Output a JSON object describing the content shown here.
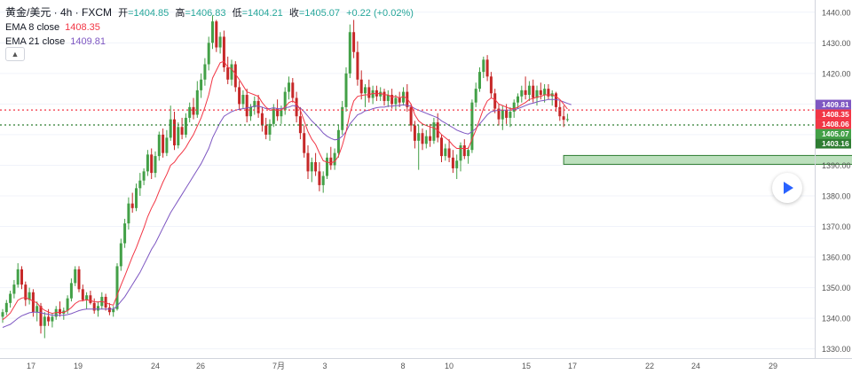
{
  "legend": {
    "symbol": "黄金/美元 · 4h · FXCM",
    "open_label": "开",
    "open": "=1404.85",
    "high_label": "高",
    "high": "=1406.83",
    "low_label": "低",
    "low": "=1404.21",
    "close_label": "收",
    "close": "=1405.07",
    "change": "+0.22 (+0.02%)",
    "ema8_label": "EMA 8 close",
    "ema8_value": "1408.35",
    "ema21_label": "EMA 21 close",
    "ema21_value": "1409.81"
  },
  "colors": {
    "up": "#43a047",
    "down": "#c62828",
    "ema8": "#f23645",
    "ema21": "#7e57c2",
    "zone_fill": "#a5d6a7",
    "zone_stroke": "#2e7d32",
    "red_level": "#f23645",
    "green_level": "#2e7d32"
  },
  "chart_data": {
    "type": "candlestick",
    "y_range": [
      1327,
      1444
    ],
    "y_ticks": [
      "1440.00",
      "1430.00",
      "1420.00",
      "1410.00",
      "1400.00",
      "1390.00",
      "1380.00",
      "1370.00",
      "1360.00",
      "1350.00",
      "1340.00",
      "1330.00"
    ],
    "y_tick_values": [
      1440,
      1430,
      1420,
      1410,
      1400,
      1390,
      1380,
      1370,
      1360,
      1350,
      1340,
      1330
    ],
    "x_labels": [
      "17",
      "19",
      "24",
      "26",
      "7月",
      "3",
      "8",
      "10",
      "15",
      "17",
      "22",
      "24",
      "29"
    ],
    "price_labels": [
      {
        "text": "1409.81",
        "value": 1409.81,
        "color": "#7e57c2"
      },
      {
        "text": "1408.35",
        "value": 1408.35,
        "color": "#f23645"
      },
      {
        "text": "1408.06",
        "value": 1408.06,
        "color": "#f23645"
      },
      {
        "text": "1405.07",
        "value": 1405.07,
        "color": "#43a047"
      },
      {
        "text": "1403.16",
        "value": 1403.16,
        "color": "#2e7d32"
      }
    ],
    "levels": [
      {
        "value": 1408.06,
        "style": "red-dotted"
      },
      {
        "value": 1403.16,
        "style": "green-dotted"
      }
    ],
    "zone": {
      "top": 1393.2,
      "bottom": 1390.3,
      "start_index": 147,
      "end_index": 245
    },
    "ohlc": [
      [
        1340.5,
        1343.0,
        1338.5,
        1342.0
      ],
      [
        1342.0,
        1346.0,
        1341.0,
        1345.0
      ],
      [
        1345.0,
        1349.0,
        1343.5,
        1348.0
      ],
      [
        1348.0,
        1352.5,
        1346.5,
        1351.0
      ],
      [
        1351.0,
        1358.0,
        1350.0,
        1356.0
      ],
      [
        1356.0,
        1357.0,
        1349.5,
        1351.0
      ],
      [
        1351.0,
        1352.0,
        1344.0,
        1346.0
      ],
      [
        1346.0,
        1350.0,
        1344.5,
        1348.5
      ],
      [
        1348.5,
        1349.5,
        1340.5,
        1342.0
      ],
      [
        1342.0,
        1345.5,
        1339.0,
        1344.0
      ],
      [
        1344.0,
        1345.0,
        1335.0,
        1337.5
      ],
      [
        1337.5,
        1342.0,
        1333.5,
        1340.5
      ],
      [
        1340.5,
        1343.0,
        1337.5,
        1339.0
      ],
      [
        1339.0,
        1341.5,
        1337.0,
        1340.5
      ],
      [
        1340.5,
        1344.0,
        1339.5,
        1343.0
      ],
      [
        1343.0,
        1345.5,
        1340.5,
        1341.5
      ],
      [
        1341.5,
        1343.5,
        1339.5,
        1342.5
      ],
      [
        1342.5,
        1347.5,
        1341.5,
        1346.5
      ],
      [
        1346.5,
        1353.0,
        1345.5,
        1351.5
      ],
      [
        1351.5,
        1357.0,
        1350.5,
        1356.0
      ],
      [
        1356.0,
        1357.0,
        1348.5,
        1349.5
      ],
      [
        1349.5,
        1351.0,
        1345.5,
        1346.0
      ],
      [
        1346.0,
        1348.5,
        1343.0,
        1347.5
      ],
      [
        1347.5,
        1349.0,
        1344.5,
        1345.0
      ],
      [
        1345.0,
        1346.5,
        1341.5,
        1342.5
      ],
      [
        1342.5,
        1345.5,
        1340.5,
        1344.0
      ],
      [
        1344.0,
        1348.5,
        1343.0,
        1347.0
      ],
      [
        1347.0,
        1348.0,
        1342.5,
        1343.5
      ],
      [
        1343.5,
        1345.0,
        1341.0,
        1342.0
      ],
      [
        1342.0,
        1344.0,
        1340.5,
        1343.0
      ],
      [
        1343.0,
        1358.0,
        1342.5,
        1357.0
      ],
      [
        1357.0,
        1366.0,
        1355.5,
        1364.5
      ],
      [
        1364.5,
        1372.5,
        1363.0,
        1371.0
      ],
      [
        1371.0,
        1379.5,
        1369.0,
        1377.5
      ],
      [
        1377.5,
        1381.0,
        1374.5,
        1376.0
      ],
      [
        1376.0,
        1384.0,
        1375.0,
        1382.5
      ],
      [
        1382.5,
        1387.5,
        1380.0,
        1385.0
      ],
      [
        1385.0,
        1389.0,
        1383.5,
        1388.0
      ],
      [
        1388.0,
        1395.0,
        1386.5,
        1393.5
      ],
      [
        1393.5,
        1395.5,
        1385.5,
        1387.5
      ],
      [
        1387.5,
        1394.5,
        1386.0,
        1393.0
      ],
      [
        1393.0,
        1401.0,
        1391.5,
        1400.0
      ],
      [
        1400.0,
        1402.0,
        1392.5,
        1394.0
      ],
      [
        1394.0,
        1401.5,
        1393.0,
        1399.0
      ],
      [
        1399.0,
        1409.5,
        1398.0,
        1405.0
      ],
      [
        1405.0,
        1407.5,
        1395.0,
        1396.5
      ],
      [
        1396.5,
        1404.0,
        1395.5,
        1402.5
      ],
      [
        1402.5,
        1405.5,
        1398.5,
        1400.0
      ],
      [
        1400.0,
        1407.0,
        1399.0,
        1405.5
      ],
      [
        1405.5,
        1410.5,
        1404.0,
        1409.0
      ],
      [
        1409.0,
        1412.0,
        1405.0,
        1406.5
      ],
      [
        1406.5,
        1417.5,
        1405.5,
        1414.5
      ],
      [
        1414.5,
        1420.0,
        1412.0,
        1418.0
      ],
      [
        1418.0,
        1425.0,
        1416.0,
        1423.0
      ],
      [
        1423.0,
        1432.0,
        1421.0,
        1430.0
      ],
      [
        1430.0,
        1439.0,
        1428.0,
        1437.0
      ],
      [
        1437.0,
        1437.5,
        1427.0,
        1428.5
      ],
      [
        1428.5,
        1433.5,
        1426.5,
        1432.0
      ],
      [
        1432.0,
        1434.0,
        1420.5,
        1422.0
      ],
      [
        1422.0,
        1425.5,
        1416.5,
        1418.0
      ],
      [
        1418.0,
        1424.5,
        1416.0,
        1423.0
      ],
      [
        1423.0,
        1424.0,
        1414.0,
        1415.5
      ],
      [
        1415.5,
        1417.5,
        1408.0,
        1410.0
      ],
      [
        1410.0,
        1414.5,
        1408.5,
        1413.0
      ],
      [
        1413.0,
        1415.0,
        1404.0,
        1406.0
      ],
      [
        1406.0,
        1410.0,
        1404.5,
        1409.0
      ],
      [
        1409.0,
        1412.5,
        1406.5,
        1411.0
      ],
      [
        1411.0,
        1413.0,
        1405.5,
        1407.0
      ],
      [
        1407.0,
        1409.0,
        1401.0,
        1403.0
      ],
      [
        1403.0,
        1405.5,
        1398.5,
        1400.0
      ],
      [
        1400.0,
        1405.0,
        1398.0,
        1403.5
      ],
      [
        1403.5,
        1410.0,
        1402.5,
        1408.5
      ],
      [
        1408.5,
        1411.5,
        1404.5,
        1406.0
      ],
      [
        1406.0,
        1409.5,
        1403.5,
        1408.0
      ],
      [
        1408.0,
        1415.5,
        1406.5,
        1414.0
      ],
      [
        1414.0,
        1419.0,
        1411.5,
        1417.0
      ],
      [
        1417.0,
        1418.5,
        1410.5,
        1412.0
      ],
      [
        1412.0,
        1414.0,
        1404.0,
        1406.0
      ],
      [
        1406.0,
        1409.0,
        1398.5,
        1400.5
      ],
      [
        1400.5,
        1403.0,
        1392.5,
        1394.0
      ],
      [
        1394.0,
        1396.5,
        1385.5,
        1388.0
      ],
      [
        1388.0,
        1392.5,
        1384.5,
        1391.0
      ],
      [
        1391.0,
        1394.0,
        1386.5,
        1388.0
      ],
      [
        1388.0,
        1391.0,
        1381.5,
        1383.5
      ],
      [
        1383.5,
        1388.0,
        1381.0,
        1386.5
      ],
      [
        1386.5,
        1394.0,
        1385.5,
        1392.5
      ],
      [
        1392.5,
        1396.0,
        1388.5,
        1390.0
      ],
      [
        1390.0,
        1395.5,
        1388.5,
        1394.0
      ],
      [
        1394.0,
        1403.0,
        1392.5,
        1401.5
      ],
      [
        1401.5,
        1411.0,
        1400.0,
        1409.0
      ],
      [
        1409.0,
        1422.0,
        1407.5,
        1420.0
      ],
      [
        1420.0,
        1436.0,
        1418.5,
        1433.5
      ],
      [
        1433.5,
        1437.5,
        1425.0,
        1427.0
      ],
      [
        1427.0,
        1430.5,
        1416.0,
        1418.0
      ],
      [
        1418.0,
        1421.0,
        1411.5,
        1413.5
      ],
      [
        1413.5,
        1416.5,
        1409.0,
        1415.5
      ],
      [
        1415.5,
        1418.0,
        1410.5,
        1412.0
      ],
      [
        1412.0,
        1416.0,
        1410.0,
        1414.5
      ],
      [
        1414.5,
        1416.0,
        1411.0,
        1412.5
      ],
      [
        1412.5,
        1415.5,
        1411.0,
        1414.0
      ],
      [
        1414.0,
        1415.0,
        1409.5,
        1411.0
      ],
      [
        1411.0,
        1414.5,
        1409.0,
        1413.0
      ],
      [
        1413.0,
        1415.0,
        1408.5,
        1410.0
      ],
      [
        1410.0,
        1413.0,
        1408.0,
        1412.0
      ],
      [
        1412.0,
        1414.0,
        1409.0,
        1410.5
      ],
      [
        1410.5,
        1415.5,
        1409.5,
        1414.0
      ],
      [
        1414.0,
        1416.5,
        1407.5,
        1409.0
      ],
      [
        1409.0,
        1410.0,
        1401.0,
        1403.0
      ],
      [
        1403.0,
        1404.5,
        1395.5,
        1398.0
      ],
      [
        1398.0,
        1403.0,
        1388.5,
        1400.5
      ],
      [
        1400.5,
        1402.0,
        1395.0,
        1397.0
      ],
      [
        1397.0,
        1401.5,
        1395.5,
        1399.5
      ],
      [
        1399.5,
        1403.5,
        1396.0,
        1398.0
      ],
      [
        1398.0,
        1405.5,
        1397.0,
        1404.0
      ],
      [
        1404.0,
        1407.0,
        1397.5,
        1399.0
      ],
      [
        1399.0,
        1400.0,
        1391.0,
        1393.0
      ],
      [
        1393.0,
        1397.0,
        1391.5,
        1395.5
      ],
      [
        1395.5,
        1398.5,
        1391.0,
        1392.5
      ],
      [
        1392.5,
        1395.0,
        1387.5,
        1389.0
      ],
      [
        1389.0,
        1393.5,
        1385.5,
        1391.5
      ],
      [
        1391.5,
        1397.5,
        1388.0,
        1396.5
      ],
      [
        1396.5,
        1398.5,
        1392.0,
        1393.0
      ],
      [
        1393.0,
        1396.0,
        1390.5,
        1395.0
      ],
      [
        1395.0,
        1411.5,
        1394.0,
        1410.5
      ],
      [
        1410.5,
        1417.0,
        1409.0,
        1415.0
      ],
      [
        1415.0,
        1422.0,
        1414.0,
        1420.5
      ],
      [
        1420.5,
        1425.5,
        1418.5,
        1424.5
      ],
      [
        1424.5,
        1426.0,
        1417.5,
        1419.0
      ],
      [
        1419.0,
        1420.5,
        1412.0,
        1413.5
      ],
      [
        1413.5,
        1415.0,
        1407.0,
        1408.5
      ],
      [
        1408.5,
        1410.0,
        1403.0,
        1405.0
      ],
      [
        1405.0,
        1409.5,
        1401.5,
        1408.0
      ],
      [
        1408.0,
        1410.0,
        1403.5,
        1405.5
      ],
      [
        1405.5,
        1409.0,
        1402.5,
        1407.5
      ],
      [
        1407.5,
        1411.5,
        1405.5,
        1410.5
      ],
      [
        1410.5,
        1413.5,
        1408.5,
        1412.5
      ],
      [
        1412.5,
        1416.0,
        1410.5,
        1414.5
      ],
      [
        1414.5,
        1419.0,
        1411.5,
        1413.0
      ],
      [
        1413.0,
        1417.5,
        1411.0,
        1416.0
      ],
      [
        1416.0,
        1418.0,
        1410.5,
        1412.0
      ],
      [
        1412.0,
        1416.0,
        1409.5,
        1414.5
      ],
      [
        1414.5,
        1417.0,
        1411.5,
        1413.0
      ],
      [
        1413.0,
        1416.5,
        1410.5,
        1415.0
      ],
      [
        1415.0,
        1416.5,
        1411.5,
        1412.5
      ],
      [
        1412.5,
        1414.5,
        1409.5,
        1413.5
      ],
      [
        1413.5,
        1414.0,
        1407.5,
        1409.0
      ],
      [
        1409.0,
        1411.0,
        1404.5,
        1406.0
      ],
      [
        1406.0,
        1409.5,
        1402.5,
        1404.85
      ],
      [
        1404.85,
        1406.83,
        1404.21,
        1405.07
      ]
    ],
    "ema8": [
      1339.5,
      1340.5,
      1341.7,
      1343.8,
      1345.9,
      1346.6,
      1346.8,
      1346.2,
      1345.6,
      1345.0,
      1343.5,
      1342.6,
      1342.0,
      1341.6,
      1341.9,
      1342.0,
      1341.9,
      1342.5,
      1343.5,
      1344.8,
      1345.6,
      1345.8,
      1346.0,
      1345.8,
      1345.4,
      1345.3,
      1345.5,
      1345.1,
      1344.6,
      1344.3,
      1347.5,
      1350.8,
      1353.8,
      1357.0,
      1360.2,
      1363.0,
      1366.3,
      1369.5,
      1373.2,
      1376.0,
      1378.4,
      1381.5,
      1384.5,
      1387.0,
      1390.0,
      1391.0,
      1392.8,
      1394.2,
      1395.8,
      1398.0,
      1400.0,
      1402.8,
      1405.5,
      1409.0,
      1413.0,
      1418.5,
      1421.0,
      1423.5,
      1424.0,
      1422.0,
      1421.5,
      1419.8,
      1418.0,
      1416.0,
      1414.0,
      1413.5,
      1413.0,
      1412.5,
      1410.5,
      1409.0,
      1408.0,
      1408.2,
      1408.0,
      1408.0,
      1409.0,
      1410.5,
      1411.0,
      1410.2,
      1408.0,
      1404.5,
      1401.0,
      1398.5,
      1396.8,
      1394.0,
      1391.5,
      1391.0,
      1390.8,
      1391.2,
      1393.0,
      1396.5,
      1401.0,
      1407.0,
      1411.0,
      1412.5,
      1412.8,
      1413.0,
      1413.0,
      1413.5,
      1413.3,
      1413.5,
      1413.0,
      1413.0,
      1412.3,
      1412.5,
      1412.0,
      1412.5,
      1411.8,
      1410.0,
      1406.5,
      1404.5,
      1403.5,
      1403.0,
      1402.5,
      1402.2,
      1401.5,
      1400.0,
      1399.0,
      1398.0,
      1396.5,
      1395.5,
      1395.5,
      1395.5,
      1395.5,
      1398.5,
      1401.5,
      1405.0,
      1408.5,
      1411.0,
      1412.0,
      1411.5,
      1410.0,
      1409.5,
      1409.0,
      1408.5,
      1408.5,
      1409.0,
      1409.8,
      1410.5,
      1411.5,
      1411.8,
      1412.3,
      1412.5,
      1413.0,
      1413.0,
      1413.0,
      1412.5,
      1411.5,
      1410.0,
      1408.35
    ],
    "ema21": [
      1337.0,
      1337.5,
      1338.0,
      1339.0,
      1340.0,
      1340.8,
      1341.3,
      1341.8,
      1342.0,
      1342.0,
      1341.8,
      1341.5,
      1341.3,
      1341.0,
      1341.0,
      1341.0,
      1341.0,
      1341.2,
      1341.5,
      1342.0,
      1342.5,
      1342.8,
      1343.0,
      1343.0,
      1343.0,
      1343.0,
      1343.0,
      1343.0,
      1343.0,
      1343.0,
      1344.0,
      1345.5,
      1347.0,
      1349.0,
      1351.0,
      1353.0,
      1355.0,
      1357.5,
      1360.0,
      1362.5,
      1364.5,
      1367.0,
      1369.5,
      1372.0,
      1374.5,
      1376.5,
      1378.5,
      1380.5,
      1382.5,
      1384.5,
      1386.5,
      1388.5,
      1390.5,
      1393.0,
      1395.5,
      1399.0,
      1401.5,
      1404.0,
      1406.0,
      1406.8,
      1407.5,
      1408.0,
      1408.3,
      1408.5,
      1408.7,
      1409.0,
      1409.3,
      1409.3,
      1409.0,
      1408.5,
      1408.5,
      1408.8,
      1408.5,
      1408.5,
      1408.8,
      1409.0,
      1409.5,
      1409.3,
      1408.7,
      1407.5,
      1406.0,
      1404.5,
      1403.3,
      1402.0,
      1400.5,
      1399.5,
      1398.8,
      1398.3,
      1398.5,
      1399.5,
      1401.0,
      1403.5,
      1405.0,
      1406.5,
      1407.0,
      1407.8,
      1408.0,
      1408.5,
      1408.8,
      1409.0,
      1409.0,
      1409.3,
      1409.3,
      1409.5,
      1409.5,
      1409.8,
      1409.5,
      1409.3,
      1408.5,
      1408.0,
      1407.5,
      1407.0,
      1406.5,
      1406.0,
      1405.5,
      1404.5,
      1403.8,
      1403.0,
      1402.3,
      1401.5,
      1401.0,
      1400.5,
      1400.2,
      1401.0,
      1402.0,
      1403.5,
      1405.0,
      1406.5,
      1407.5,
      1407.8,
      1408.0,
      1408.0,
      1408.0,
      1408.0,
      1408.2,
      1408.5,
      1409.0,
      1409.5,
      1410.0,
      1410.3,
      1410.7,
      1411.0,
      1411.2,
      1411.5,
      1411.5,
      1411.5,
      1411.2,
      1410.7,
      1410.2,
      1409.81
    ]
  }
}
